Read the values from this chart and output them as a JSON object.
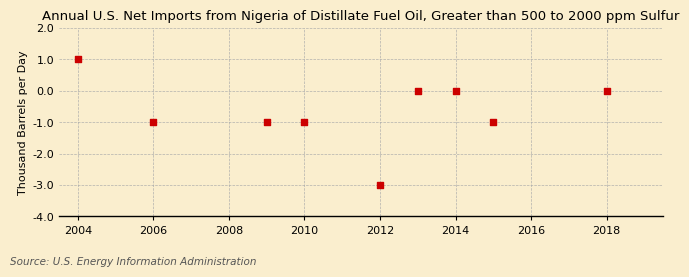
{
  "title": "Annual U.S. Net Imports from Nigeria of Distillate Fuel Oil, Greater than 500 to 2000 ppm Sulfur",
  "ylabel": "Thousand Barrels per Day",
  "source": "Source: U.S. Energy Information Administration",
  "years": [
    2004,
    2006,
    2009,
    2010,
    2012,
    2013,
    2014,
    2015,
    2018
  ],
  "values": [
    1.0,
    -1.0,
    -1.0,
    -1.0,
    -3.0,
    0.0,
    0.0,
    -1.0,
    0.0
  ],
  "xlim": [
    2003.5,
    2019.5
  ],
  "ylim": [
    -4.0,
    2.0
  ],
  "yticks": [
    -4.0,
    -3.0,
    -2.0,
    -1.0,
    0.0,
    1.0,
    2.0
  ],
  "xticks": [
    2004,
    2006,
    2008,
    2010,
    2012,
    2014,
    2016,
    2018
  ],
  "marker_color": "#cc0000",
  "marker": "s",
  "marker_size": 4,
  "bg_color": "#faeece",
  "grid_color": "#aaaaaa",
  "title_fontsize": 9.5,
  "label_fontsize": 8,
  "tick_fontsize": 8,
  "source_fontsize": 7.5
}
